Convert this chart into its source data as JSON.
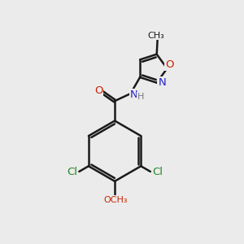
{
  "background_color": "#ebebeb",
  "bond_color": "#1a1a1a",
  "bond_width": 1.8,
  "atom_colors": {
    "C": "#1a1a1a",
    "H": "#7a7a7a",
    "N": "#2222cc",
    "O": "#cc2200",
    "Cl": "#228822"
  },
  "font_size": 9.5
}
